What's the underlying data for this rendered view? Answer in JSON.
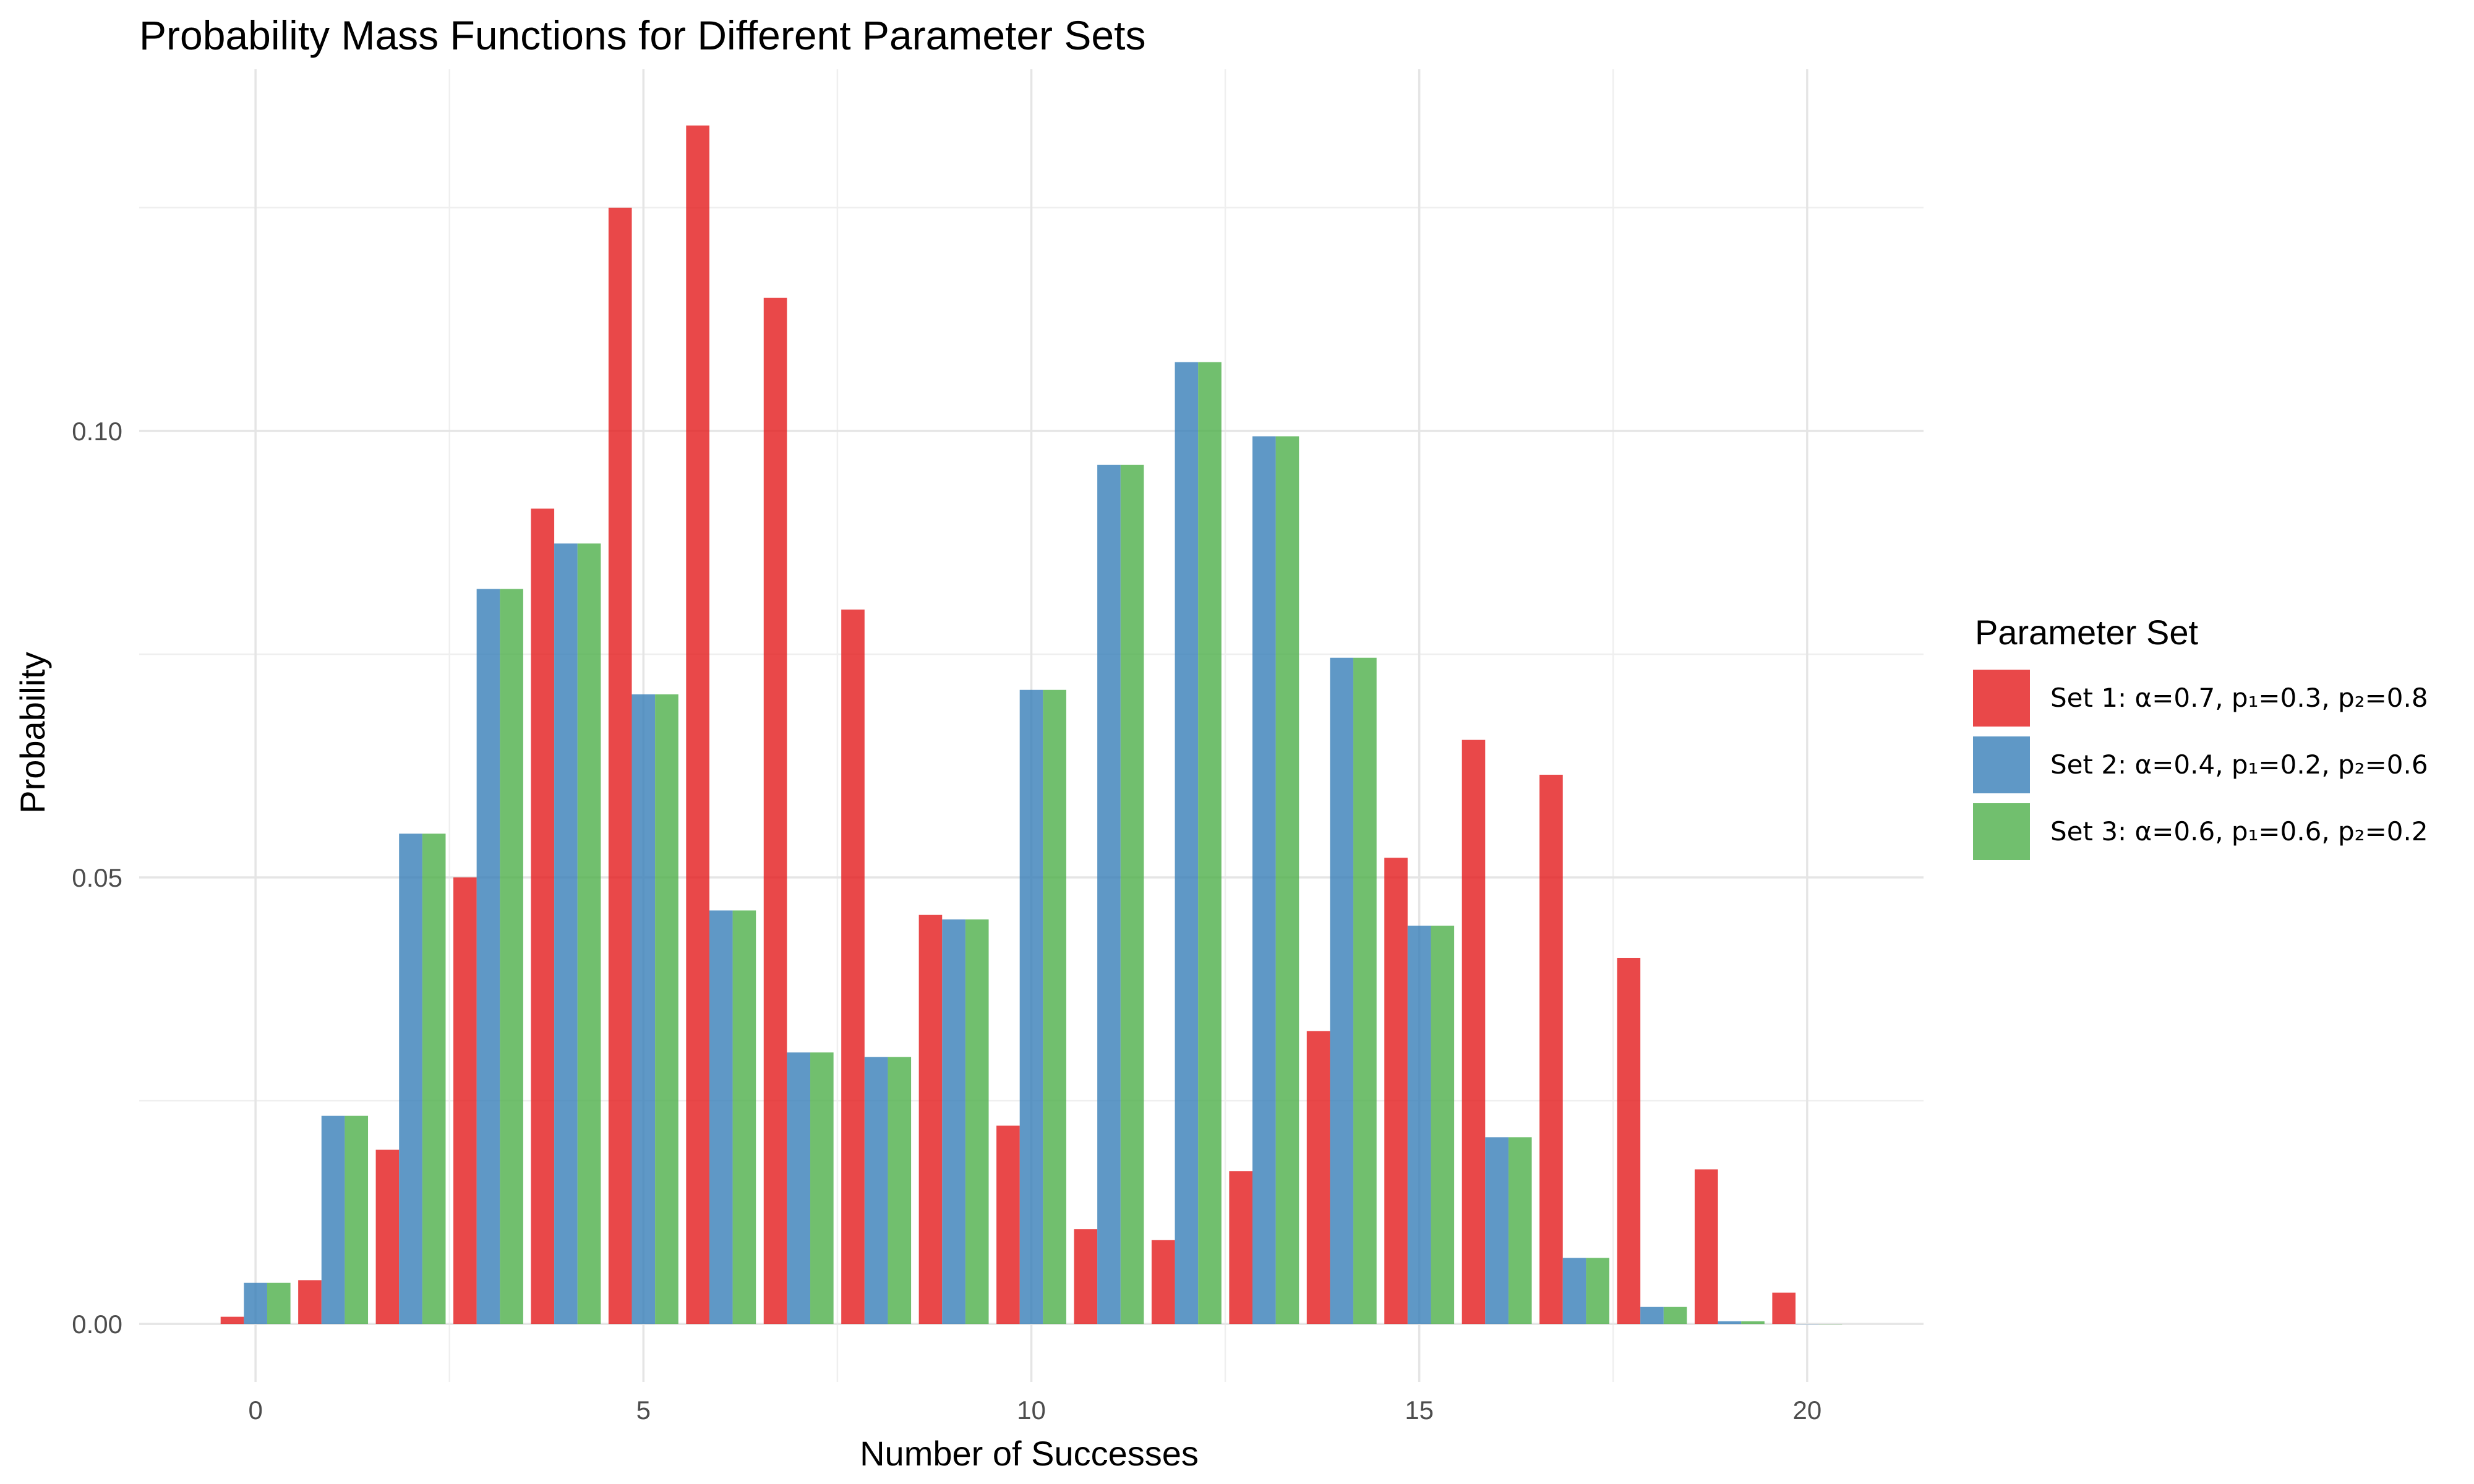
{
  "chart_data": {
    "type": "bar",
    "title": "Probability Mass Functions for Different Parameter Sets",
    "xlabel": "Number of Successes",
    "ylabel": "Probability",
    "x": [
      0,
      1,
      2,
      3,
      4,
      5,
      6,
      7,
      8,
      9,
      10,
      11,
      12,
      13,
      14,
      15,
      16,
      17,
      18,
      19,
      20
    ],
    "xlim": [
      -1.5,
      21.5
    ],
    "ylim": [
      -0.0065,
      0.1405
    ],
    "x_ticks": [
      0,
      5,
      10,
      15,
      20
    ],
    "y_ticks": [
      0.0,
      0.05,
      0.1
    ],
    "x_tick_labels": [
      "0",
      "5",
      "10",
      "15",
      "20"
    ],
    "y_tick_labels": [
      "0.00",
      "0.05",
      "0.10"
    ],
    "grid": true,
    "legend_title": "Parameter Set",
    "legend_position": "right",
    "series": [
      {
        "name": "Set 1: α=0.7, p₁=0.3, p₂=0.8",
        "color": "#e41a1c",
        "values": [
          0.0008,
          0.0049,
          0.0195,
          0.05,
          0.0913,
          0.125,
          0.1342,
          0.1149,
          0.08,
          0.0458,
          0.0222,
          0.0106,
          0.0094,
          0.0171,
          0.0328,
          0.0522,
          0.0654,
          0.0615,
          0.041,
          0.0173,
          0.0035
        ]
      },
      {
        "name": "Set 2: α=0.4, p₁=0.2, p₂=0.6",
        "color": "#377eb8",
        "values": [
          0.0046,
          0.0233,
          0.0549,
          0.0823,
          0.0874,
          0.0705,
          0.0463,
          0.0304,
          0.0299,
          0.0453,
          0.071,
          0.0962,
          0.1077,
          0.0994,
          0.0746,
          0.0446,
          0.0209,
          0.0074,
          0.0019,
          0.0003,
          0.0
        ]
      },
      {
        "name": "Set 3: α=0.6, p₁=0.6, p₂=0.2",
        "color": "#4daf4a",
        "values": [
          0.0046,
          0.0233,
          0.0549,
          0.0823,
          0.0874,
          0.0705,
          0.0463,
          0.0304,
          0.0299,
          0.0453,
          0.071,
          0.0962,
          0.1077,
          0.0994,
          0.0746,
          0.0446,
          0.0209,
          0.0074,
          0.0019,
          0.0003,
          0.0
        ]
      }
    ]
  }
}
